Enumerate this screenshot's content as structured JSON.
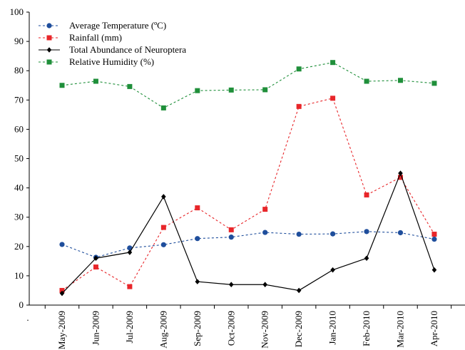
{
  "chart_data": {
    "type": "line",
    "title": "",
    "xlabel": "",
    "ylabel": "",
    "ylim": [
      0,
      100
    ],
    "yticks": [
      "0",
      "10",
      "20",
      "30",
      "40",
      "50",
      "60",
      "70",
      "80",
      "90",
      "100"
    ],
    "categories": [
      "May-2009",
      "Jun-2009",
      "Jul-2009",
      "Aug-2009",
      "Sep-2009",
      "Oct-2009",
      "Nov-2009",
      "Dec-2009",
      "Jan-2010",
      "Feb-2010",
      "Mar-2010",
      "Apr-2010"
    ],
    "extra_x_tick_label": ".",
    "grid": false,
    "legend_position": "top-left",
    "series": [
      {
        "name": "Average Temperature (ºC)",
        "color": "#1f4e9c",
        "line_style": "dashed",
        "marker": "circle",
        "values": [
          20.7,
          16.3,
          19.5,
          20.6,
          22.7,
          23.2,
          24.8,
          24.2,
          24.3,
          25.1,
          24.7,
          22.5
        ]
      },
      {
        "name": "Rainfall (mm)",
        "color": "#e8262a",
        "line_style": "dashed",
        "marker": "square",
        "values": [
          5.0,
          13.0,
          6.3,
          26.5,
          33.2,
          25.7,
          32.7,
          67.8,
          70.6,
          37.6,
          43.6,
          24.2
        ]
      },
      {
        "name": "Total Abundance of Neuroptera",
        "color": "#000000",
        "line_style": "solid",
        "marker": "diamond",
        "values": [
          4,
          16,
          18,
          37,
          8,
          7,
          7,
          5,
          12,
          16,
          45,
          12
        ]
      },
      {
        "name": "Relative Humidity (%)",
        "color": "#1f8f3a",
        "line_style": "dashed",
        "marker": "square",
        "values": [
          75.0,
          76.4,
          74.6,
          67.3,
          73.2,
          73.4,
          73.5,
          80.6,
          82.8,
          76.4,
          76.7,
          75.7
        ]
      }
    ]
  }
}
